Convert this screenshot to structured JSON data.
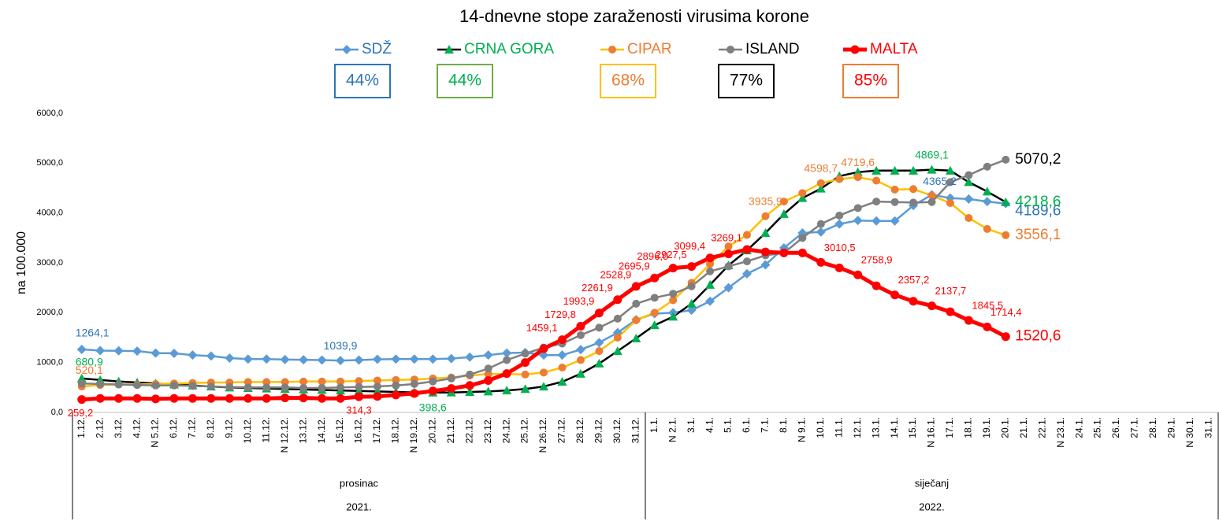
{
  "chart_data": {
    "type": "line",
    "title": "14-dnevne stope zaraženosti virusima korone",
    "y_label": "na 100.000",
    "categories": [
      "1.12.",
      "2.12.",
      "3.12.",
      "4.12.",
      "N 5.12.",
      "6.12.",
      "7.12.",
      "8.12.",
      "9.12.",
      "10.12.",
      "11.12.",
      "N 12.12.",
      "13.12.",
      "14.12.",
      "15.12.",
      "16.12.",
      "17.12.",
      "18.12.",
      "N 19.12.",
      "20.12.",
      "21.12.",
      "22.12.",
      "23.12.",
      "24.12.",
      "25.12.",
      "N 26.12.",
      "27.12.",
      "28.12.",
      "29.12.",
      "30.12.",
      "31.12.",
      "1.1.",
      "N 2.1.",
      "3.1.",
      "4.1.",
      "5.1.",
      "6.1.",
      "7.1.",
      "8.1.",
      "N 9.1.",
      "10.1.",
      "11.1.",
      "12.1.",
      "13.1.",
      "14.1.",
      "15.1.",
      "N 16.1.",
      "17.1.",
      "18.1.",
      "19.1.",
      "20.1.",
      "21.1.",
      "22.1.",
      "N 23.1.",
      "24.1.",
      "25.1.",
      "26.1.",
      "27.1.",
      "28.1.",
      "29.1.",
      "N 30.1.",
      "31.1."
    ],
    "month_groups": [
      {
        "label": "prosinac",
        "from": "1.12.",
        "to": "31.12."
      },
      {
        "label": "siječanj",
        "from": "1.1.",
        "to": "31.1."
      }
    ],
    "year_groups": [
      {
        "label": "2021.",
        "from": "1.12.",
        "to": "31.12."
      },
      {
        "label": "2022.",
        "from": "1.1.",
        "to": "31.1."
      }
    ],
    "ylim": [
      0,
      6000
    ],
    "yticks": [
      {
        "value": 0,
        "label": "0,0"
      },
      {
        "value": 1000,
        "label": "1000,0"
      },
      {
        "value": 2000,
        "label": "2000,0"
      },
      {
        "value": 3000,
        "label": "3000,0"
      },
      {
        "value": 4000,
        "label": "4000,0"
      },
      {
        "value": 5000,
        "label": "5000,0"
      },
      {
        "value": 6000,
        "label": "6000,0"
      }
    ],
    "grid": false,
    "series": [
      {
        "name": "SDŽ",
        "color": "#5b9bd5",
        "marker": "diamond",
        "marker_color": "#5b9bd5",
        "text_color": "#2e75b6",
        "line_width": 2.5,
        "share_label": "44%",
        "share_border": "#2e75b6",
        "values": [
          1264.1,
          1240,
          1235,
          1230,
          1190,
          1185,
          1150,
          1130,
          1090,
          1070,
          1070,
          1060,
          1055,
          1050,
          1039.9,
          1050,
          1065,
          1070,
          1070,
          1070,
          1080,
          1110,
          1150,
          1190,
          1200,
          1150,
          1150,
          1260,
          1400,
          1600,
          1860,
          1980,
          2000,
          2050,
          2230,
          2500,
          2780,
          2960,
          3300,
          3600,
          3620,
          3780,
          3850,
          3840,
          3840,
          4150,
          4365.2,
          4300,
          4280,
          4230,
          4189.6,
          null,
          null,
          null,
          null,
          null,
          null,
          null,
          null,
          null,
          null,
          null
        ],
        "value_labels": [
          "1264,1",
          null,
          null,
          null,
          null,
          null,
          null,
          null,
          null,
          null,
          null,
          null,
          null,
          null,
          "1039,9",
          null,
          null,
          null,
          null,
          null,
          null,
          null,
          null,
          null,
          null,
          null,
          null,
          null,
          null,
          null,
          null,
          null,
          null,
          null,
          null,
          null,
          null,
          null,
          null,
          null,
          null,
          null,
          null,
          null,
          null,
          null,
          "4365,2",
          null,
          null,
          null,
          "4189,6",
          null,
          null,
          null,
          null,
          null,
          null,
          null,
          null,
          null,
          null,
          null
        ]
      },
      {
        "name": "CRNA GORA",
        "color": "#000000",
        "marker": "triangle",
        "marker_color": "#00b050",
        "text_color": "#00b050",
        "line_width": 2.5,
        "share_label": "44%",
        "share_border": "#70ad47",
        "values": [
          680.9,
          650,
          620,
          600,
          580,
          560,
          540,
          520,
          500,
          490,
          480,
          470,
          460,
          450,
          440,
          430,
          420,
          410,
          400,
          398.6,
          400,
          410,
          420,
          440,
          470,
          520,
          615,
          775,
          980,
          1230,
          1485,
          1750,
          1920,
          2180,
          2560,
          2950,
          3250,
          3600,
          3980,
          4300,
          4490,
          4740,
          4820,
          4850,
          4850,
          4850,
          4869.1,
          4850,
          4620,
          4430,
          4218.6,
          null,
          null,
          null,
          null,
          null,
          null,
          null,
          null,
          null,
          null,
          null
        ],
        "value_labels": [
          "680,9",
          null,
          null,
          null,
          null,
          null,
          null,
          null,
          null,
          null,
          null,
          null,
          null,
          null,
          null,
          null,
          null,
          null,
          null,
          "398,6",
          null,
          null,
          null,
          null,
          null,
          null,
          null,
          null,
          null,
          null,
          null,
          null,
          null,
          null,
          null,
          null,
          null,
          null,
          null,
          null,
          null,
          null,
          null,
          null,
          null,
          null,
          "4869,1",
          null,
          null,
          null,
          "4218,6",
          null,
          null,
          null,
          null,
          null,
          null,
          null,
          null,
          null,
          null,
          null
        ]
      },
      {
        "name": "CIPAR",
        "color": "#ffc000",
        "marker": "circle",
        "marker_color": "#ed7d31",
        "text_color": "#ed7d31",
        "line_width": 2.5,
        "share_label": "68%",
        "share_border": "#ffc000",
        "values": [
          520.1,
          550,
          560,
          560,
          570,
          580,
          590,
          600,
          600,
          610,
          610,
          610,
          620,
          620,
          620,
          630,
          640,
          650,
          660,
          680,
          700,
          740,
          770,
          770,
          760,
          800,
          900,
          1050,
          1230,
          1500,
          1850,
          2000,
          2250,
          2600,
          2980,
          3330,
          3560,
          3935.9,
          4230,
          4400,
          4598.7,
          4680,
          4719.6,
          4650,
          4470,
          4480,
          4350,
          4200,
          3900,
          3680,
          3556.1,
          null,
          null,
          null,
          null,
          null,
          null,
          null,
          null,
          null,
          null,
          null
        ],
        "value_labels": [
          "520,1",
          null,
          null,
          null,
          null,
          null,
          null,
          null,
          null,
          null,
          null,
          null,
          null,
          null,
          null,
          null,
          null,
          null,
          null,
          null,
          null,
          null,
          null,
          null,
          null,
          null,
          null,
          null,
          null,
          null,
          null,
          null,
          null,
          null,
          null,
          null,
          null,
          "3935,9",
          null,
          null,
          "4598,7",
          null,
          "4719,6",
          null,
          null,
          null,
          null,
          null,
          null,
          null,
          "3556,1",
          null,
          null,
          null,
          null,
          null,
          null,
          null,
          null,
          null,
          null,
          null
        ]
      },
      {
        "name": "ISLAND",
        "color": "#7f7f7f",
        "marker": "circle",
        "marker_color": "#7f7f7f",
        "text_color": "#000000",
        "line_width": 2.5,
        "share_label": "77%",
        "share_border": "#000000",
        "values": [
          580,
          570,
          560,
          550,
          540,
          540,
          530,
          520,
          510,
          500,
          500,
          500,
          490,
          490,
          500,
          510,
          520,
          540,
          570,
          620,
          680,
          760,
          880,
          1050,
          1180,
          1300,
          1380,
          1550,
          1700,
          1880,
          2180,
          2300,
          2380,
          2530,
          2830,
          2930,
          3030,
          3150,
          3200,
          3500,
          3780,
          3950,
          4100,
          4230,
          4220,
          4210,
          4220,
          4620,
          4760,
          4930,
          5070.2,
          null,
          null,
          null,
          null,
          null,
          null,
          null,
          null,
          null,
          null,
          null
        ],
        "value_labels": [
          null,
          null,
          null,
          null,
          null,
          null,
          null,
          null,
          null,
          null,
          null,
          null,
          null,
          null,
          null,
          null,
          null,
          null,
          null,
          null,
          null,
          null,
          null,
          null,
          null,
          null,
          null,
          null,
          null,
          null,
          null,
          null,
          null,
          null,
          null,
          null,
          null,
          null,
          null,
          null,
          null,
          null,
          null,
          null,
          null,
          null,
          null,
          null,
          null,
          null,
          "5070,2",
          null,
          null,
          null,
          null,
          null,
          null,
          null,
          null,
          null,
          null,
          null
        ]
      },
      {
        "name": "MALTA",
        "color": "#ff0000",
        "marker": "circle",
        "marker_color": "#ff0000",
        "text_color": "#ff0000",
        "line_width": 5,
        "share_label": "85%",
        "share_border": "#ed7d31",
        "values": [
          259.2,
          280,
          280,
          280,
          270,
          280,
          280,
          280,
          280,
          280,
          280,
          290,
          290,
          280,
          280,
          314.3,
          320,
          350,
          380,
          430,
          480,
          540,
          640,
          780,
          1000,
          1280,
          1459.1,
          1729.8,
          1993.9,
          2261.9,
          2528.9,
          2695.9,
          2896.0,
          2927.5,
          3099.4,
          3180,
          3269.1,
          3220,
          3200,
          3200,
          3010.5,
          2900,
          2758.9,
          2540,
          2357.2,
          2230,
          2137.7,
          2020,
          1845.5,
          1714.4,
          1520.6,
          null,
          null,
          null,
          null,
          null,
          null,
          null,
          null,
          null,
          null,
          null
        ],
        "value_labels": [
          "259,2",
          null,
          null,
          null,
          null,
          null,
          null,
          null,
          null,
          null,
          null,
          null,
          null,
          null,
          null,
          "314,3",
          null,
          null,
          null,
          null,
          null,
          null,
          null,
          null,
          null,
          null,
          "1459,1",
          "1729,8",
          "1993,9",
          "2261,9",
          "2528,9",
          "2695,9",
          "2896,0",
          "2927,5",
          "3099,4",
          null,
          "3269,1",
          null,
          null,
          null,
          "3010,5",
          null,
          "2758,9",
          null,
          "2357,2",
          null,
          "2137,7",
          null,
          "1845,5",
          "1714,4",
          "1520,6",
          null,
          null,
          null,
          null,
          null,
          null,
          null,
          null,
          null,
          null,
          null
        ]
      }
    ]
  }
}
